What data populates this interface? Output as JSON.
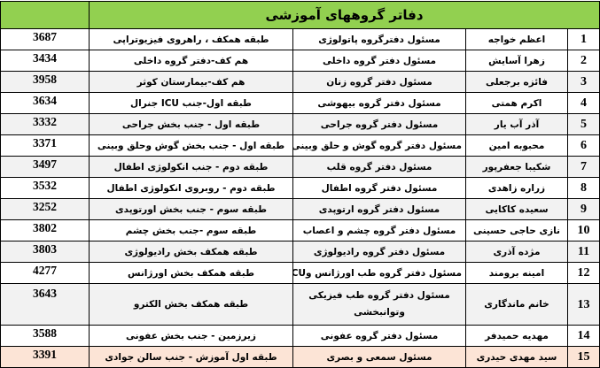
{
  "title": "دفاتر گروههای آموزشی",
  "colors": {
    "header_bg": "#92d050",
    "alt_row_bg": "#f2f2f2",
    "highlight_row_bg": "#fce4d6"
  },
  "rows": [
    {
      "num": "1",
      "name": "اعظم خواجه",
      "role": "مسئول دفترگروه پاتولوژی",
      "location": "طبقه همکف ، راهروی فیزیوتراپی",
      "phone": "3687"
    },
    {
      "num": "2",
      "name": "زهرا آسایش",
      "role": "مسئول دفتر گروه داخلی",
      "location": "هم کف-دفتر گروه داخلی",
      "phone": "3434"
    },
    {
      "num": "3",
      "name": "فائزه برجعلی",
      "role": "مسئول دفتر گروه زنان",
      "location": "هم کف-بیمارستان کوثر",
      "phone": "3958"
    },
    {
      "num": "4",
      "name": "اکرم همتی",
      "role": "مسئول دفتر گروه بیهوشی",
      "location": "طبقه اول-جنب ICU جنرال",
      "phone": "3634"
    },
    {
      "num": "5",
      "name": "آذر آب یار",
      "role": "مسئول دفتر گروه جراحی",
      "location": "طبقه اول - جنب بخش جراحی",
      "phone": "3332"
    },
    {
      "num": "6",
      "name": "محبوبه امین",
      "role": "مسئول دفتر گروه گوش و حلق وبینی",
      "location": "طبقه اول - جنب بخش گوش وحلق وبینی",
      "phone": "3371"
    },
    {
      "num": "7",
      "name": "شکیبا جعفرپور",
      "role": "مسئول دفتر گروه قلب",
      "location": "طبقه دوم - جنب انکولوژی اطفال",
      "phone": "3497"
    },
    {
      "num": "8",
      "name": "زراره زاهدی",
      "role": "مسئول دفتر گروه اطفال",
      "location": "طبقه دوم - روبروی انکولوژی اطفال",
      "phone": "3532"
    },
    {
      "num": "9",
      "name": "سعیده کاکایی",
      "role": "مسئول دفتر گروه ارتوپدی",
      "location": "طبقه سوم - جنب بخش اورتوپدی",
      "phone": "3252"
    },
    {
      "num": "10",
      "name": "نازی حاجی حسینی",
      "role": "مسئول دفتر گروه چشم و اعصاب",
      "location": "طبقه سوم -جنب بخش چشم",
      "phone": "3802"
    },
    {
      "num": "11",
      "name": "مژده آذری",
      "role": "مسئول دفتر گروه رادیولوژی",
      "location": "طبقه همکف بخش رادیولوژی",
      "phone": "3803"
    },
    {
      "num": "12",
      "name": "امینه برومند",
      "role": "مسئول دفتر گروه طب اورژانس وICU",
      "location": "طبقه همکف بخش اورژانس",
      "phone": "4277"
    },
    {
      "num": "13",
      "name": "خانم ماندگاری",
      "role": "مسئول دفتر گروه طب فیزیکی وتوانبخشی",
      "location": "طبقه همکف بخش الکترو",
      "phone": "3643"
    },
    {
      "num": "14",
      "name": "مهدیه حمیدفر",
      "role": "مسئول دفتر گروه عفونی",
      "location": "زیرزمین - جنب بخش عفونی",
      "phone": "3588"
    },
    {
      "num": "15",
      "name": "سید مهدی حیدری",
      "role": "مسئول سمعی و بصری",
      "location": "طبقه اول آموزش - جنب سالن جوادی",
      "phone": "3391"
    }
  ]
}
